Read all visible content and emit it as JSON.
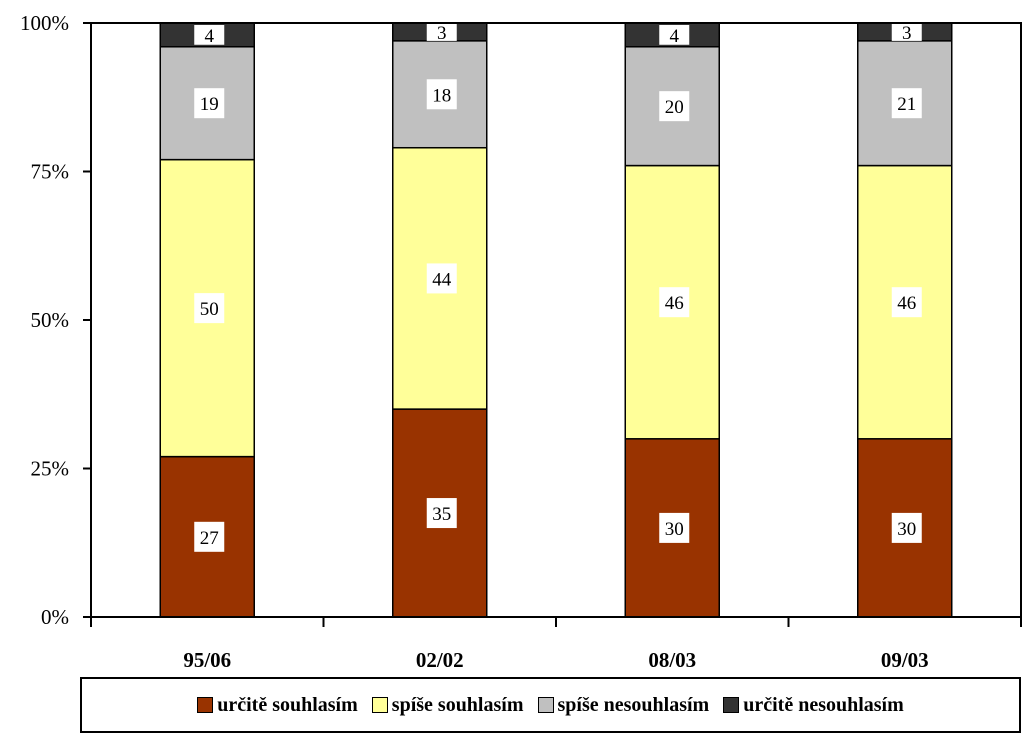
{
  "chart_data": {
    "type": "bar",
    "stacked": true,
    "categories": [
      "95/06",
      "02/02",
      "08/03",
      "09/03"
    ],
    "series": [
      {
        "name": "určitě souhlasím",
        "color": "#993300",
        "values": [
          27,
          35,
          30,
          30
        ]
      },
      {
        "name": "spíše souhlasím",
        "color": "#ffff99",
        "values": [
          50,
          44,
          46,
          46
        ]
      },
      {
        "name": "spíše nesouhlasím",
        "color": "#c0c0c0",
        "values": [
          19,
          18,
          20,
          21
        ]
      },
      {
        "name": "určitě nesouhlasím",
        "color": "#333333",
        "values": [
          4,
          3,
          4,
          3
        ]
      }
    ],
    "yticks": [
      "0%",
      "25%",
      "50%",
      "75%",
      "100%"
    ],
    "ylim": [
      0,
      100
    ],
    "grid": false,
    "legend_position": "bottom"
  }
}
